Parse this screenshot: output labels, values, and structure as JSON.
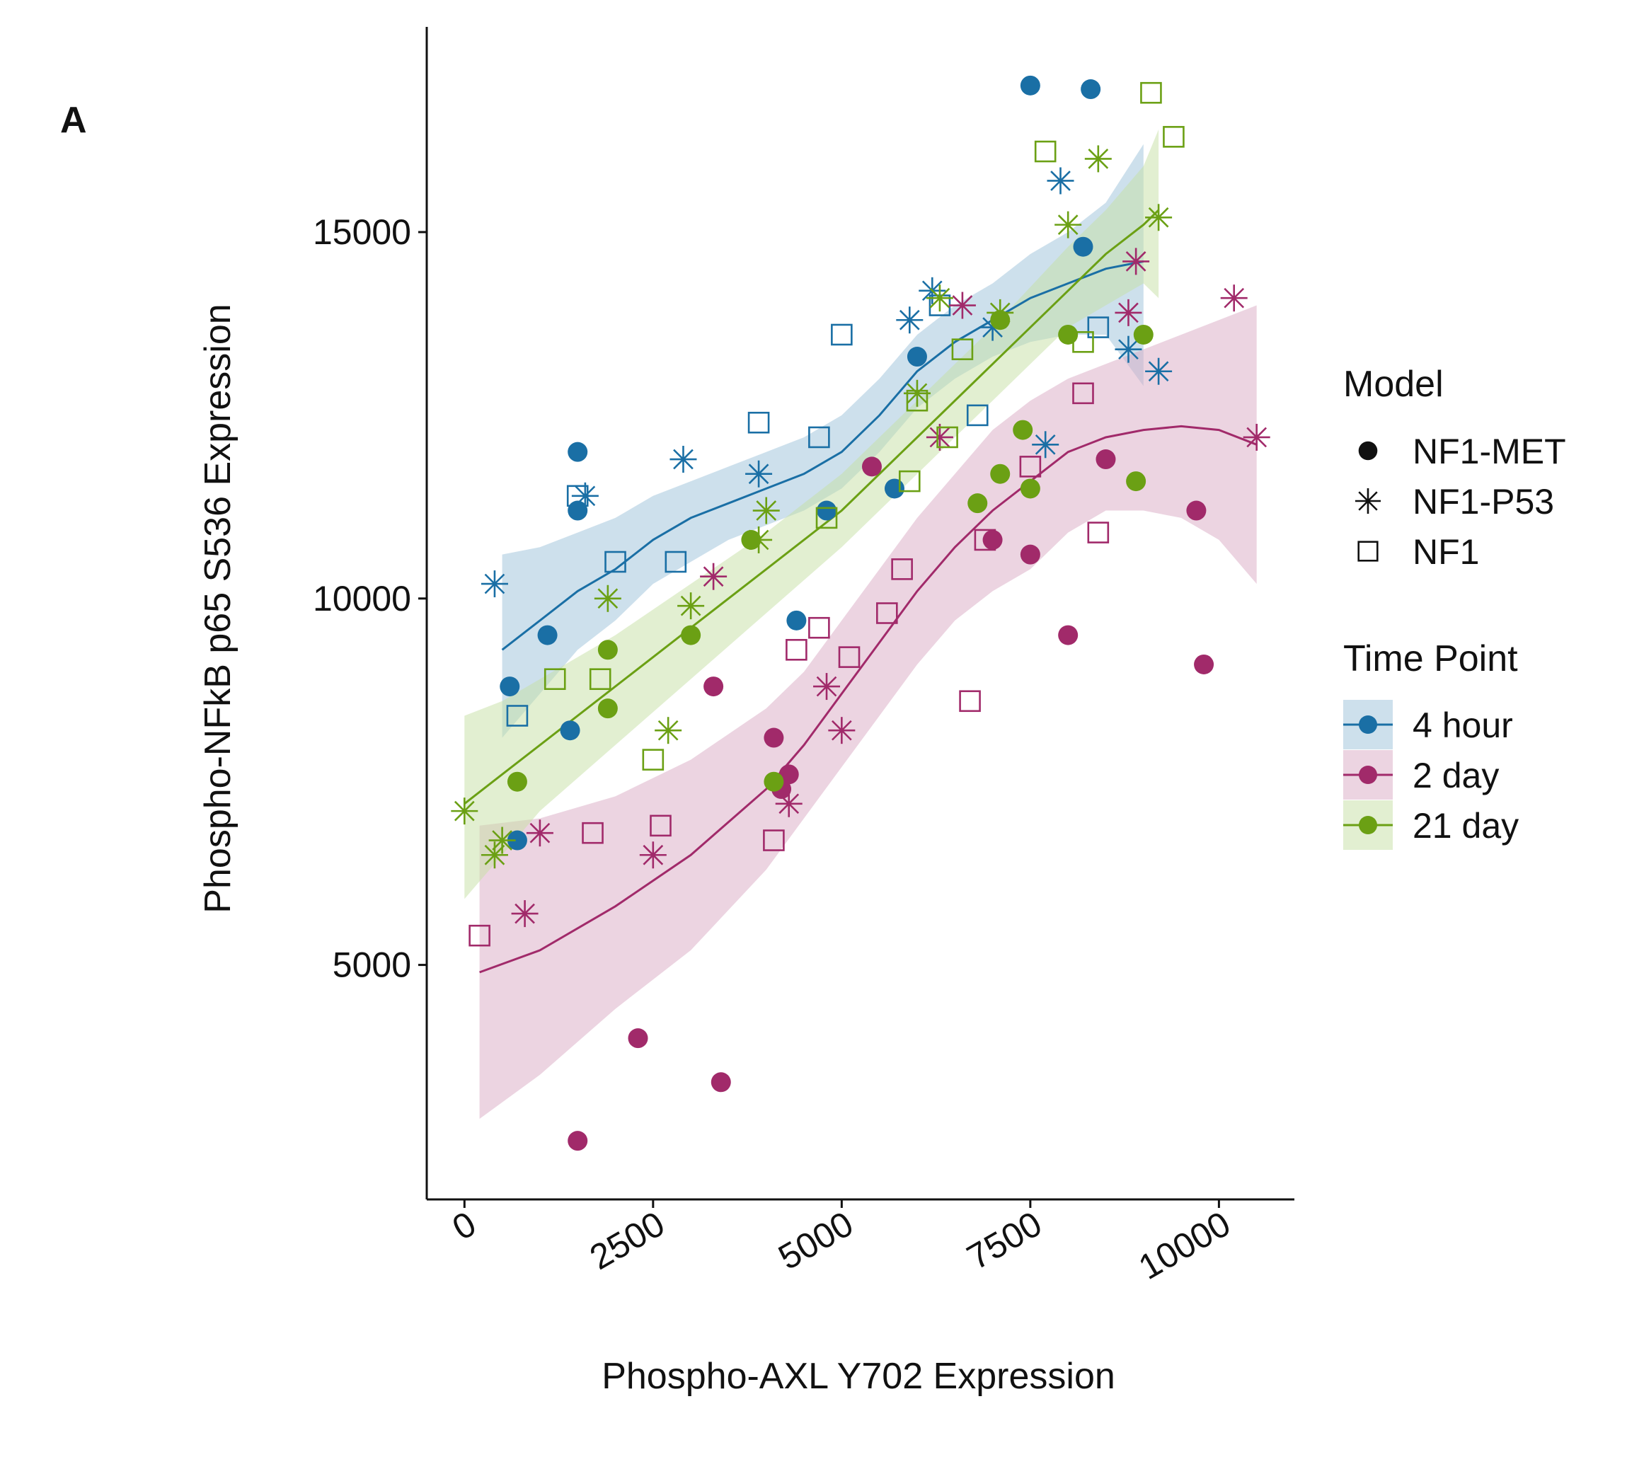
{
  "panel_label": "A",
  "chart_data": {
    "type": "scatter",
    "title": "",
    "xlabel": "Phospho-AXL Y702 Expression",
    "ylabel": "Phospho-NFkB p65 S536 Expression",
    "xlim": [
      -500,
      11000
    ],
    "ylim": [
      1800,
      17800
    ],
    "x_ticks": [
      0,
      2500,
      5000,
      7500,
      10000
    ],
    "x_tick_labels": [
      "0",
      "2500",
      "5000",
      "7500",
      "10000"
    ],
    "y_ticks": [
      5000,
      10000,
      15000
    ],
    "y_tick_labels": [
      "5000",
      "10000",
      "15000"
    ],
    "grid": false,
    "legend": {
      "placement": "right",
      "model_title": "Model",
      "model_entries": [
        {
          "label": "NF1-MET",
          "shape": "circle"
        },
        {
          "label": "NF1-P53",
          "shape": "asterisk"
        },
        {
          "label": "NF1",
          "shape": "square"
        }
      ],
      "time_title": "Time Point"
    },
    "series": [
      {
        "name": "4 hour",
        "color": "#1a6fa5",
        "band_color": "#9cc2d9",
        "points": [
          {
            "model": "NF1-MET",
            "x": 7500,
            "y": 17000
          },
          {
            "model": "NF1-MET",
            "x": 8300,
            "y": 16950
          },
          {
            "model": "NF1-MET",
            "x": 8200,
            "y": 14800
          },
          {
            "model": "NF1-MET",
            "x": 6000,
            "y": 13300
          },
          {
            "model": "NF1-MET",
            "x": 1500,
            "y": 12000
          },
          {
            "model": "NF1-MET",
            "x": 1500,
            "y": 11200
          },
          {
            "model": "NF1-MET",
            "x": 4800,
            "y": 11200
          },
          {
            "model": "NF1-MET",
            "x": 5700,
            "y": 11500
          },
          {
            "model": "NF1-MET",
            "x": 1100,
            "y": 9500
          },
          {
            "model": "NF1-MET",
            "x": 4400,
            "y": 9700
          },
          {
            "model": "NF1-MET",
            "x": 600,
            "y": 8800
          },
          {
            "model": "NF1-MET",
            "x": 1400,
            "y": 8200
          },
          {
            "model": "NF1-MET",
            "x": 700,
            "y": 6700
          },
          {
            "model": "NF1-P53",
            "x": 7900,
            "y": 15700
          },
          {
            "model": "NF1-P53",
            "x": 6200,
            "y": 14200
          },
          {
            "model": "NF1-P53",
            "x": 5900,
            "y": 13800
          },
          {
            "model": "NF1-P53",
            "x": 7000,
            "y": 13700
          },
          {
            "model": "NF1-P53",
            "x": 8800,
            "y": 13400
          },
          {
            "model": "NF1-P53",
            "x": 9200,
            "y": 13100
          },
          {
            "model": "NF1-P53",
            "x": 7700,
            "y": 12100
          },
          {
            "model": "NF1-P53",
            "x": 2900,
            "y": 11900
          },
          {
            "model": "NF1-P53",
            "x": 3900,
            "y": 11700
          },
          {
            "model": "NF1-P53",
            "x": 1600,
            "y": 11400
          },
          {
            "model": "NF1-P53",
            "x": 400,
            "y": 10200
          },
          {
            "model": "NF1",
            "x": 6300,
            "y": 14000
          },
          {
            "model": "NF1",
            "x": 8400,
            "y": 13700
          },
          {
            "model": "NF1",
            "x": 5000,
            "y": 13600
          },
          {
            "model": "NF1",
            "x": 3900,
            "y": 12400
          },
          {
            "model": "NF1",
            "x": 4700,
            "y": 12200
          },
          {
            "model": "NF1",
            "x": 6800,
            "y": 12500
          },
          {
            "model": "NF1",
            "x": 1500,
            "y": 11400
          },
          {
            "model": "NF1",
            "x": 2000,
            "y": 10500
          },
          {
            "model": "NF1",
            "x": 2800,
            "y": 10500
          },
          {
            "model": "NF1",
            "x": 700,
            "y": 8400
          }
        ],
        "fit": {
          "x": [
            500,
            1000,
            1500,
            2000,
            2500,
            3000,
            3500,
            4000,
            4500,
            5000,
            5500,
            6000,
            6500,
            7000,
            7500,
            8000,
            8500,
            9000
          ],
          "y": [
            9300,
            9700,
            10100,
            10400,
            10800,
            11100,
            11300,
            11500,
            11700,
            12000,
            12500,
            13100,
            13500,
            13800,
            14100,
            14300,
            14500,
            14600
          ],
          "upper": [
            10600,
            10700,
            10900,
            11100,
            11400,
            11600,
            11800,
            12000,
            12200,
            12500,
            13000,
            13600,
            14000,
            14300,
            14700,
            15000,
            15400,
            16200
          ],
          "lower": [
            8100,
            8700,
            9300,
            9700,
            10200,
            10500,
            10800,
            11000,
            11200,
            11500,
            12000,
            12600,
            13000,
            13300,
            13500,
            13600,
            13600,
            12900
          ]
        }
      },
      {
        "name": "2 day",
        "color": "#a12a6a",
        "band_color": "#d9aac3",
        "points": [
          {
            "model": "NF1-MET",
            "x": 5400,
            "y": 11800
          },
          {
            "model": "NF1-MET",
            "x": 8500,
            "y": 11900
          },
          {
            "model": "NF1-MET",
            "x": 7000,
            "y": 10800
          },
          {
            "model": "NF1-MET",
            "x": 7500,
            "y": 10600
          },
          {
            "model": "NF1-MET",
            "x": 9700,
            "y": 11200
          },
          {
            "model": "NF1-MET",
            "x": 8000,
            "y": 9500
          },
          {
            "model": "NF1-MET",
            "x": 9800,
            "y": 9100
          },
          {
            "model": "NF1-MET",
            "x": 3300,
            "y": 8800
          },
          {
            "model": "NF1-MET",
            "x": 4100,
            "y": 8100
          },
          {
            "model": "NF1-MET",
            "x": 4300,
            "y": 7600
          },
          {
            "model": "NF1-MET",
            "x": 4200,
            "y": 7400
          },
          {
            "model": "NF1-MET",
            "x": 2300,
            "y": 4000
          },
          {
            "model": "NF1-MET",
            "x": 3400,
            "y": 3400
          },
          {
            "model": "NF1-MET",
            "x": 1500,
            "y": 2600
          },
          {
            "model": "NF1-P53",
            "x": 10200,
            "y": 14100
          },
          {
            "model": "NF1-P53",
            "x": 6600,
            "y": 14000
          },
          {
            "model": "NF1-P53",
            "x": 8800,
            "y": 13900
          },
          {
            "model": "NF1-P53",
            "x": 8900,
            "y": 14600
          },
          {
            "model": "NF1-P53",
            "x": 6300,
            "y": 12200
          },
          {
            "model": "NF1-P53",
            "x": 10500,
            "y": 12200
          },
          {
            "model": "NF1-P53",
            "x": 3300,
            "y": 10300
          },
          {
            "model": "NF1-P53",
            "x": 4800,
            "y": 8800
          },
          {
            "model": "NF1-P53",
            "x": 5000,
            "y": 8200
          },
          {
            "model": "NF1-P53",
            "x": 4300,
            "y": 7200
          },
          {
            "model": "NF1-P53",
            "x": 1000,
            "y": 6800
          },
          {
            "model": "NF1-P53",
            "x": 2500,
            "y": 6500
          },
          {
            "model": "NF1-P53",
            "x": 800,
            "y": 5700
          },
          {
            "model": "NF1",
            "x": 8200,
            "y": 12800
          },
          {
            "model": "NF1",
            "x": 7500,
            "y": 11800
          },
          {
            "model": "NF1",
            "x": 8400,
            "y": 10900
          },
          {
            "model": "NF1",
            "x": 6900,
            "y": 10800
          },
          {
            "model": "NF1",
            "x": 5800,
            "y": 10400
          },
          {
            "model": "NF1",
            "x": 5600,
            "y": 9800
          },
          {
            "model": "NF1",
            "x": 4700,
            "y": 9600
          },
          {
            "model": "NF1",
            "x": 4400,
            "y": 9300
          },
          {
            "model": "NF1",
            "x": 5100,
            "y": 9200
          },
          {
            "model": "NF1",
            "x": 6700,
            "y": 8600
          },
          {
            "model": "NF1",
            "x": 2600,
            "y": 6900
          },
          {
            "model": "NF1",
            "x": 1700,
            "y": 6800
          },
          {
            "model": "NF1",
            "x": 4100,
            "y": 6700
          },
          {
            "model": "NF1",
            "x": 200,
            "y": 5400
          }
        ],
        "fit": {
          "x": [
            200,
            1000,
            2000,
            3000,
            4000,
            4500,
            5000,
            5500,
            6000,
            6500,
            7000,
            7500,
            8000,
            8500,
            9000,
            9500,
            10000,
            10500
          ],
          "y": [
            4900,
            5200,
            5800,
            6500,
            7400,
            8000,
            8700,
            9400,
            10100,
            10700,
            11200,
            11600,
            12000,
            12200,
            12300,
            12350,
            12300,
            12100
          ],
          "upper": [
            6900,
            7000,
            7300,
            7800,
            8500,
            9000,
            9700,
            10400,
            11100,
            11700,
            12300,
            12700,
            13000,
            13200,
            13400,
            13600,
            13800,
            14000
          ],
          "lower": [
            2900,
            3500,
            4400,
            5200,
            6300,
            7000,
            7700,
            8400,
            9100,
            9700,
            10100,
            10400,
            10900,
            11200,
            11200,
            11100,
            10800,
            10200
          ]
        }
      },
      {
        "name": "21 day",
        "color": "#6ba014",
        "band_color": "#c6dfa4",
        "points": [
          {
            "model": "NF1-MET",
            "x": 7100,
            "y": 13800
          },
          {
            "model": "NF1-MET",
            "x": 8000,
            "y": 13600
          },
          {
            "model": "NF1-MET",
            "x": 9000,
            "y": 13600
          },
          {
            "model": "NF1-MET",
            "x": 7400,
            "y": 12300
          },
          {
            "model": "NF1-MET",
            "x": 7100,
            "y": 11700
          },
          {
            "model": "NF1-MET",
            "x": 8900,
            "y": 11600
          },
          {
            "model": "NF1-MET",
            "x": 7500,
            "y": 11500
          },
          {
            "model": "NF1-MET",
            "x": 6800,
            "y": 11300
          },
          {
            "model": "NF1-MET",
            "x": 3800,
            "y": 10800
          },
          {
            "model": "NF1-MET",
            "x": 3000,
            "y": 9500
          },
          {
            "model": "NF1-MET",
            "x": 1900,
            "y": 9300
          },
          {
            "model": "NF1-MET",
            "x": 1900,
            "y": 8500
          },
          {
            "model": "NF1-MET",
            "x": 700,
            "y": 7500
          },
          {
            "model": "NF1-MET",
            "x": 4100,
            "y": 7500
          },
          {
            "model": "NF1-P53",
            "x": 8400,
            "y": 16000
          },
          {
            "model": "NF1-P53",
            "x": 9200,
            "y": 15200
          },
          {
            "model": "NF1-P53",
            "x": 8000,
            "y": 15100
          },
          {
            "model": "NF1-P53",
            "x": 6300,
            "y": 14100
          },
          {
            "model": "NF1-P53",
            "x": 7100,
            "y": 13900
          },
          {
            "model": "NF1-P53",
            "x": 6000,
            "y": 12800
          },
          {
            "model": "NF1-P53",
            "x": 4000,
            "y": 11200
          },
          {
            "model": "NF1-P53",
            "x": 3900,
            "y": 10800
          },
          {
            "model": "NF1-P53",
            "x": 1900,
            "y": 10000
          },
          {
            "model": "NF1-P53",
            "x": 3000,
            "y": 9900
          },
          {
            "model": "NF1-P53",
            "x": 2700,
            "y": 8200
          },
          {
            "model": "NF1-P53",
            "x": 0,
            "y": 7100
          },
          {
            "model": "NF1-P53",
            "x": 500,
            "y": 6700
          },
          {
            "model": "NF1-P53",
            "x": 400,
            "y": 6500
          },
          {
            "model": "NF1",
            "x": 9100,
            "y": 16900
          },
          {
            "model": "NF1",
            "x": 9400,
            "y": 16300
          },
          {
            "model": "NF1",
            "x": 7700,
            "y": 16100
          },
          {
            "model": "NF1",
            "x": 8200,
            "y": 13500
          },
          {
            "model": "NF1",
            "x": 6600,
            "y": 13400
          },
          {
            "model": "NF1",
            "x": 6400,
            "y": 12200
          },
          {
            "model": "NF1",
            "x": 6000,
            "y": 12700
          },
          {
            "model": "NF1",
            "x": 5900,
            "y": 11600
          },
          {
            "model": "NF1",
            "x": 4800,
            "y": 11100
          },
          {
            "model": "NF1",
            "x": 1200,
            "y": 8900
          },
          {
            "model": "NF1",
            "x": 1800,
            "y": 8900
          },
          {
            "model": "NF1",
            "x": 2500,
            "y": 7800
          }
        ],
        "fit": {
          "x": [
            0,
            500,
            1000,
            2000,
            3000,
            4000,
            5000,
            6000,
            7000,
            8000,
            8500,
            9000,
            9200
          ],
          "y": [
            7200,
            7600,
            8000,
            8800,
            9600,
            10400,
            11200,
            12200,
            13200,
            14200,
            14700,
            15100,
            15300
          ],
          "upper": [
            8400,
            8600,
            8900,
            9500,
            10200,
            10900,
            11700,
            12700,
            13700,
            14800,
            15300,
            15900,
            16400
          ],
          "lower": [
            5900,
            6500,
            7100,
            8000,
            8900,
            9800,
            10700,
            11700,
            12700,
            13700,
            14000,
            14300,
            14100
          ]
        }
      }
    ]
  }
}
